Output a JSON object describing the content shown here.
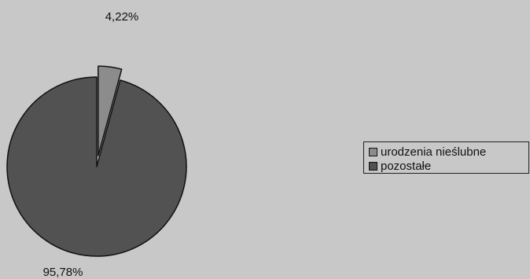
{
  "chart_data": {
    "type": "pie",
    "title": "",
    "slices": [
      {
        "label": "urodzenia nieślubne",
        "value": 4.22,
        "display": "4,22%",
        "color": "#8c8c8c",
        "exploded": true
      },
      {
        "label": "pozostałe",
        "value": 95.78,
        "display": "95,78%",
        "color": "#525252",
        "exploded": false
      }
    ],
    "legend_position": "right",
    "border_color": "#111111"
  }
}
